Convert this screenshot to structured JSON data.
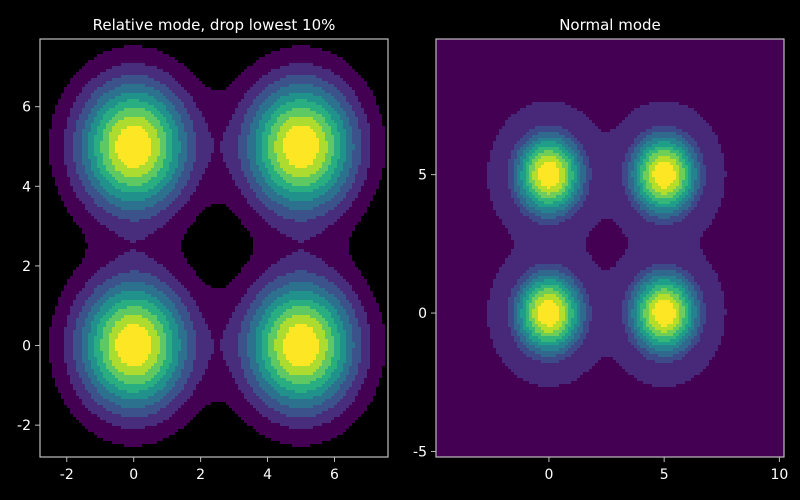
{
  "chart_data": [
    {
      "type": "contourf",
      "title": "Relative mode, drop lowest 10%",
      "xlim": [
        -2.8,
        7.6
      ],
      "ylim": [
        -2.8,
        7.7
      ],
      "xticks": [
        -2,
        0,
        2,
        4,
        6
      ],
      "yticks": [
        -2,
        0,
        2,
        4,
        6
      ],
      "grid": true,
      "background": "#000000",
      "peaks": [
        {
          "x": 0,
          "y": 0
        },
        {
          "x": 5,
          "y": 0
        },
        {
          "x": 0,
          "y": 5
        },
        {
          "x": 5,
          "y": 5
        }
      ],
      "level_colors": [
        "#440154",
        "#472d7b",
        "#3b528b",
        "#2c728e",
        "#21918c",
        "#28ae80",
        "#5ec962",
        "#addc30",
        "#fde725"
      ],
      "dropped_fraction": 0.1
    },
    {
      "type": "contourf",
      "title": "Normal mode",
      "xlim": [
        -4.9,
        10.2
      ],
      "ylim": [
        -5.2,
        9.9
      ],
      "xticks": [
        0,
        5,
        10
      ],
      "yticks": [
        -5,
        0,
        5
      ],
      "grid": false,
      "background": "#440154",
      "peaks": [
        {
          "x": 0,
          "y": 0
        },
        {
          "x": 5,
          "y": 0
        },
        {
          "x": 0,
          "y": 5
        },
        {
          "x": 5,
          "y": 5
        }
      ],
      "level_colors": [
        "#440154",
        "#482878",
        "#3e4989",
        "#31688e",
        "#26828e",
        "#1f9e89",
        "#35b779",
        "#6ece58",
        "#b5de2b",
        "#fde725"
      ]
    }
  ]
}
